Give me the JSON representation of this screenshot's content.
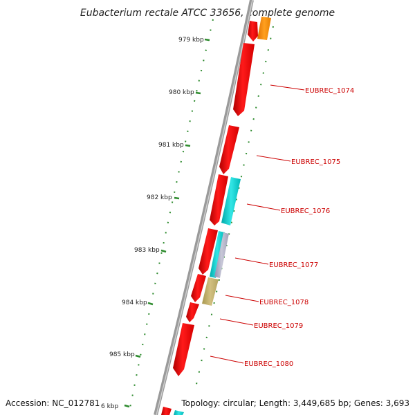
{
  "map": {
    "title": "Eubacterium rectale ATCC 33656, complete genome",
    "accession": "Accession: NC_012781",
    "summary": "Topology: circular; Length: 3,449,685 bp; Genes: 3,693",
    "kbp_labels": [
      "979 kbp",
      "980 kbp",
      "981 kbp",
      "982 kbp",
      "983 kbp",
      "984 kbp",
      "985 kbp",
      "6 kbp"
    ],
    "gene_labels": [
      "EUBREC_1074",
      "EUBREC_1075",
      "EUBREC_1076",
      "EUBREC_1077",
      "EUBREC_1078",
      "EUBREC_1079",
      "EUBREC_1080"
    ],
    "colors": {
      "backbone": "#808080",
      "cds": "#ff0000",
      "trna": "#00cccc",
      "rrna": "#ff8c00",
      "other": "#c8b46e",
      "misc": "#8888cc",
      "ticks": "#2e8b2e",
      "label": "#cc0000"
    }
  }
}
